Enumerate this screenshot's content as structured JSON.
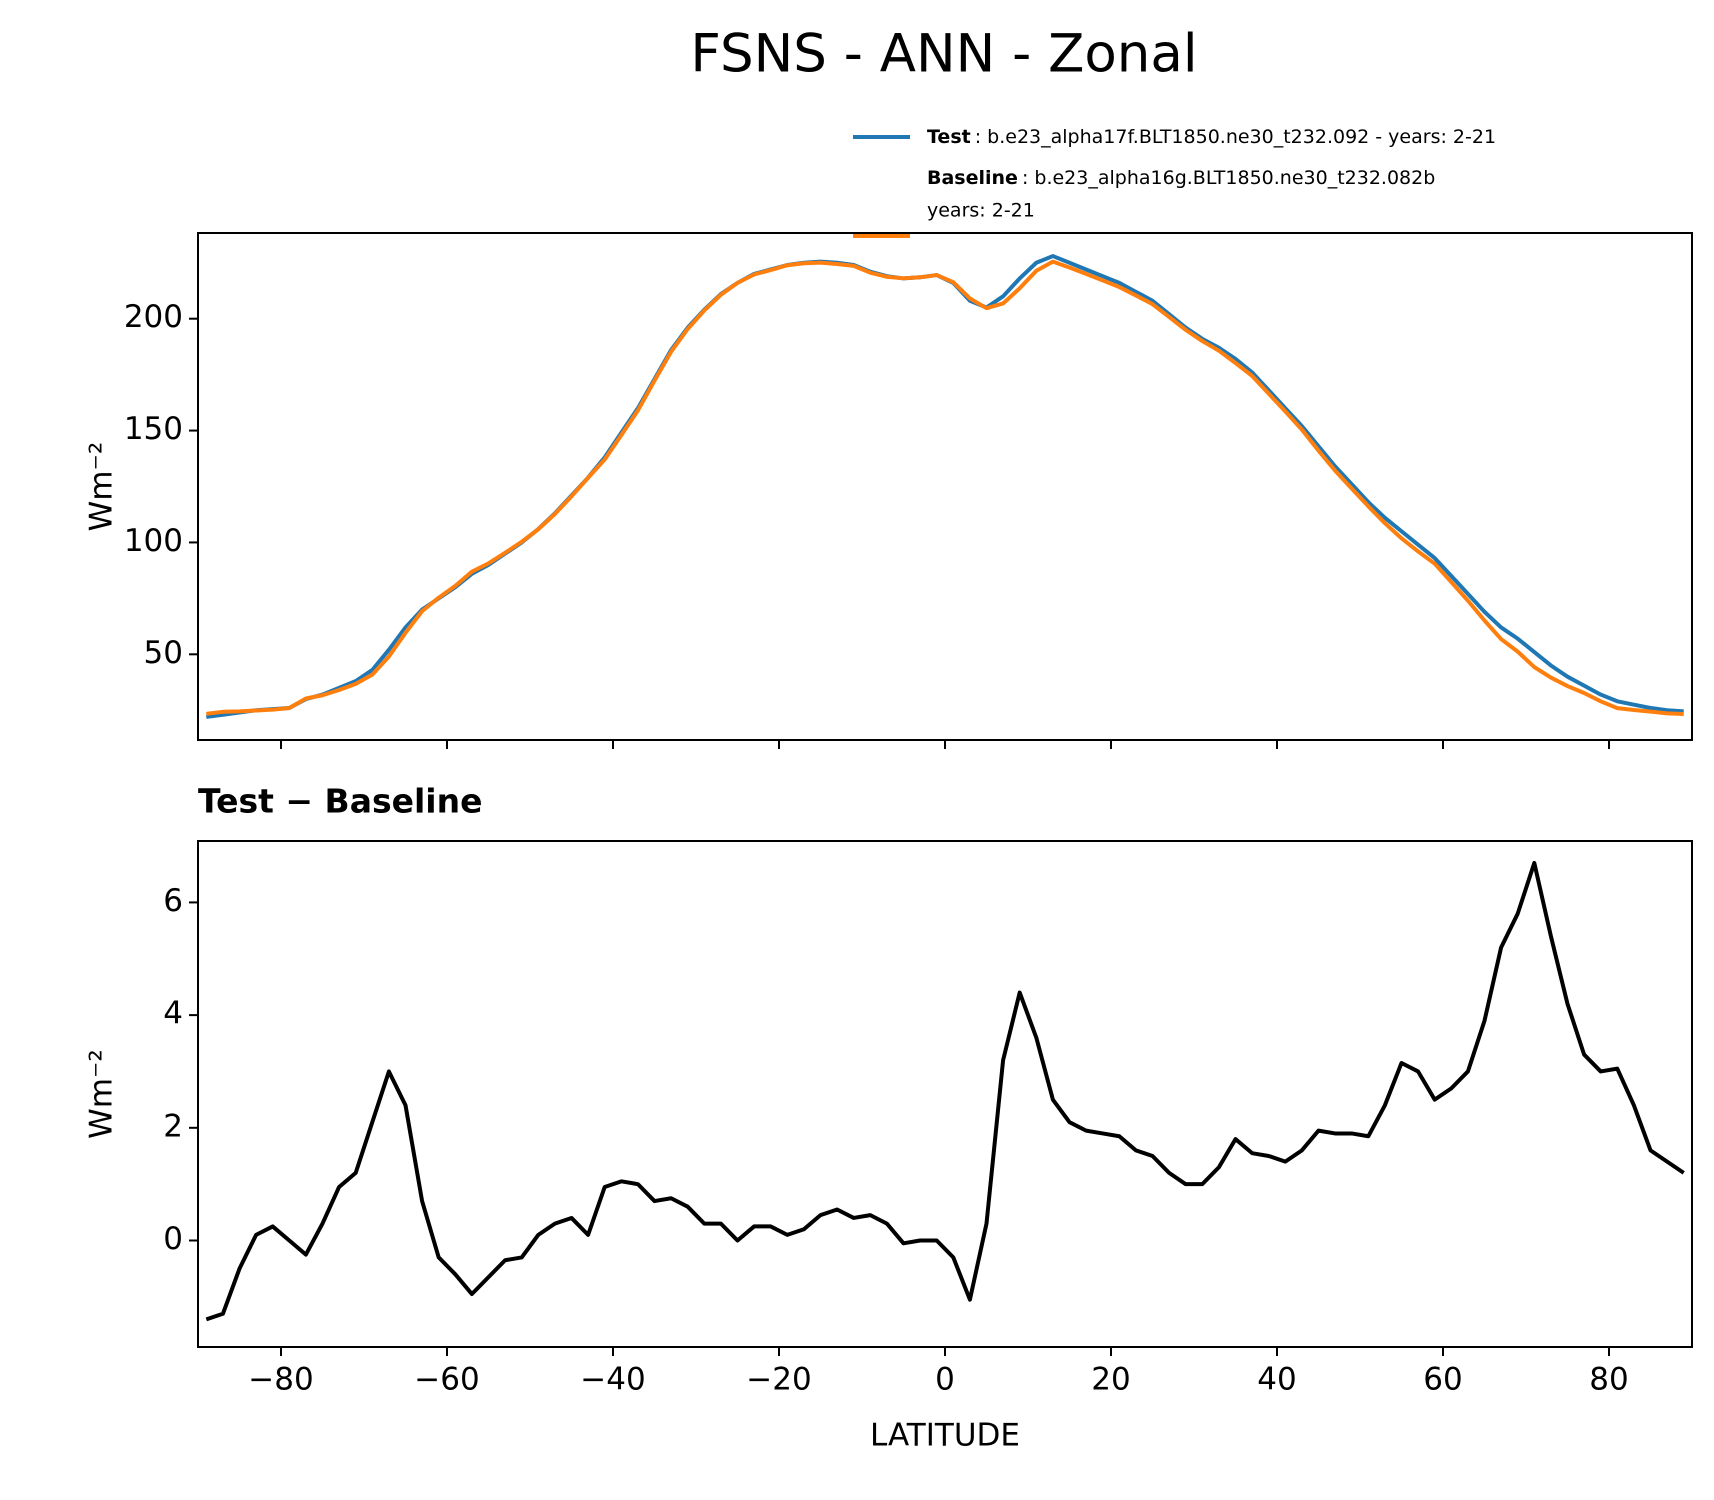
{
  "chart_data": [
    {
      "type": "line",
      "title": "FSNS - ANN - Zonal",
      "ylabel": "Wm⁻²",
      "x": [
        -89,
        -87,
        -85,
        -83,
        -81,
        -79,
        -77,
        -75,
        -73,
        -71,
        -69,
        -67,
        -65,
        -63,
        -61,
        -59,
        -57,
        -55,
        -53,
        -51,
        -49,
        -47,
        -45,
        -43,
        -41,
        -39,
        -37,
        -35,
        -33,
        -31,
        -29,
        -27,
        -25,
        -23,
        -21,
        -19,
        -17,
        -15,
        -13,
        -11,
        -9,
        -7,
        -5,
        -3,
        -1,
        1,
        3,
        5,
        7,
        9,
        11,
        13,
        15,
        17,
        19,
        21,
        23,
        25,
        27,
        29,
        31,
        33,
        35,
        37,
        39,
        41,
        43,
        45,
        47,
        49,
        51,
        53,
        55,
        57,
        59,
        61,
        63,
        65,
        67,
        69,
        71,
        73,
        75,
        77,
        79,
        81,
        83,
        85,
        87,
        89
      ],
      "series": [
        {
          "name": "Test",
          "label": [
            ": b.e23_alpha17f.BLT1850.ne30_t232.092 - years: 2-21"
          ],
          "color": "#1f77b4",
          "values": [
            22,
            23,
            24,
            25,
            25.5,
            26,
            30,
            32,
            35,
            38,
            43,
            52,
            62,
            70,
            75,
            80,
            86,
            90,
            95,
            100,
            106,
            113,
            121,
            129,
            138,
            149,
            160,
            173,
            186,
            196,
            204,
            211,
            216,
            220,
            222,
            224,
            225,
            225.5,
            225,
            224,
            221,
            219,
            218,
            218.5,
            219.5,
            216,
            208,
            205,
            210,
            218,
            225,
            228,
            225,
            222,
            219,
            216,
            212,
            208,
            202,
            196,
            191,
            187,
            182,
            176,
            168,
            160,
            152,
            143,
            134,
            126,
            118,
            111,
            105,
            99,
            93,
            85,
            77,
            69,
            62,
            57,
            51,
            45,
            40,
            36,
            32,
            29,
            27.5,
            26,
            25,
            24.5
          ]
        },
        {
          "name": "Baseline",
          "label": [
            ": b.e23_alpha16g.BLT1850.ne30_t232.082b",
            "years: 2-21"
          ],
          "color": "#ff7f0e",
          "values": [
            23.4,
            24.3,
            24.5,
            24.9,
            25.25,
            26,
            30.25,
            31.7,
            34.05,
            36.8,
            40.9,
            49,
            59.6,
            69.3,
            75.3,
            80.6,
            86.95,
            90.65,
            95.35,
            100.3,
            105.9,
            112.7,
            120.6,
            128.9,
            137.05,
            147.95,
            159,
            172.3,
            185.25,
            195.4,
            203.7,
            210.7,
            216,
            219.75,
            221.75,
            223.9,
            224.8,
            225.05,
            224.45,
            223.6,
            220.55,
            218.7,
            218.05,
            218.5,
            219.5,
            216.3,
            209.05,
            204.7,
            206.8,
            213.6,
            221.4,
            225.5,
            222.9,
            220.05,
            217.1,
            214.15,
            210.4,
            206.5,
            200.8,
            195,
            190,
            185.7,
            180.2,
            174.45,
            166.5,
            158.6,
            150.4,
            141.05,
            132.1,
            124.1,
            116.15,
            108.6,
            101.85,
            96,
            90.5,
            82.3,
            74,
            65.1,
            56.8,
            51.2,
            44.3,
            39.6,
            35.8,
            32.7,
            29,
            25.95,
            25.1,
            24.4,
            23.6,
            23.3
          ]
        }
      ],
      "xlim": [
        -90,
        90
      ],
      "xticks": [
        -80,
        -60,
        -40,
        -20,
        0,
        20,
        40,
        60,
        80
      ],
      "xtick_labels": false,
      "ylim": [
        11.7,
        238.3
      ],
      "yticks": [
        50,
        100,
        150,
        200
      ]
    },
    {
      "type": "line",
      "title": "Test − Baseline",
      "ylabel": "Wm⁻²",
      "xlabel": "LATITUDE",
      "x": [
        -89,
        -87,
        -85,
        -83,
        -81,
        -79,
        -77,
        -75,
        -73,
        -71,
        -69,
        -67,
        -65,
        -63,
        -61,
        -59,
        -57,
        -55,
        -53,
        -51,
        -49,
        -47,
        -45,
        -43,
        -41,
        -39,
        -37,
        -35,
        -33,
        -31,
        -29,
        -27,
        -25,
        -23,
        -21,
        -19,
        -17,
        -15,
        -13,
        -11,
        -9,
        -7,
        -5,
        -3,
        -1,
        1,
        3,
        5,
        7,
        9,
        11,
        13,
        15,
        17,
        19,
        21,
        23,
        25,
        27,
        29,
        31,
        33,
        35,
        37,
        39,
        41,
        43,
        45,
        47,
        49,
        51,
        53,
        55,
        57,
        59,
        61,
        63,
        65,
        67,
        69,
        71,
        73,
        75,
        77,
        79,
        81,
        83,
        85,
        87,
        89
      ],
      "series": [
        {
          "color": "#000000",
          "values": [
            -1.4,
            -1.3,
            -0.5,
            0.1,
            0.25,
            0,
            -0.25,
            0.3,
            0.95,
            1.2,
            2.1,
            3,
            2.4,
            0.7,
            -0.3,
            -0.6,
            -0.95,
            -0.65,
            -0.35,
            -0.3,
            0.1,
            0.3,
            0.4,
            0.1,
            0.95,
            1.05,
            1,
            0.7,
            0.75,
            0.6,
            0.3,
            0.3,
            0,
            0.25,
            0.25,
            0.1,
            0.2,
            0.45,
            0.55,
            0.4,
            0.45,
            0.3,
            -0.05,
            0,
            0,
            -0.3,
            -1.05,
            0.3,
            3.2,
            4.4,
            3.6,
            2.5,
            2.1,
            1.95,
            1.9,
            1.85,
            1.6,
            1.5,
            1.2,
            1,
            1,
            1.3,
            1.8,
            1.55,
            1.5,
            1.4,
            1.6,
            1.95,
            1.9,
            1.9,
            1.85,
            2.4,
            3.15,
            3,
            2.5,
            2.7,
            3,
            3.9,
            5.2,
            5.8,
            6.7,
            5.4,
            4.2,
            3.3,
            3,
            3.05,
            2.4,
            1.6,
            1.4,
            1.2
          ]
        }
      ],
      "xlim": [
        -90,
        90
      ],
      "xticks": [
        {
          "value": -80,
          "label": "−80"
        },
        {
          "value": -60,
          "label": "−60"
        },
        {
          "value": -40,
          "label": "−40"
        },
        {
          "value": -20,
          "label": "−20"
        },
        0,
        20,
        40,
        60,
        80
      ],
      "xtick_labels": true,
      "ylim": [
        -1.89,
        7.09
      ],
      "yticks": [
        0,
        2,
        4,
        6
      ]
    }
  ]
}
